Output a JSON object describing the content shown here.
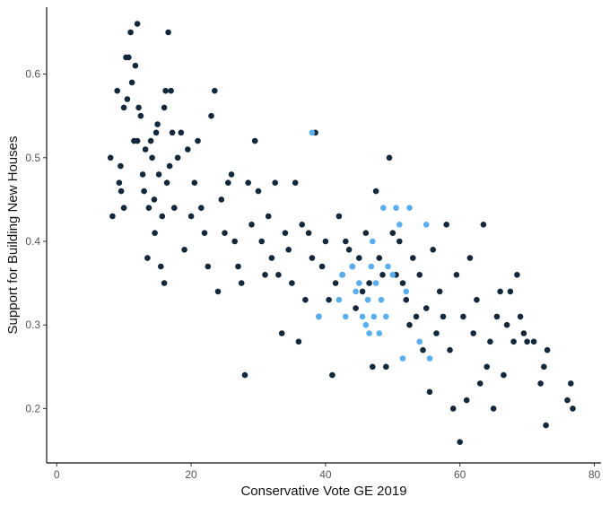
{
  "chart_data": {
    "type": "scatter",
    "title": "",
    "xlabel": "Conservative Vote GE 2019",
    "ylabel": "Support for Building New Houses",
    "xlim": [
      -1.5,
      81
    ],
    "ylim": [
      0.135,
      0.68
    ],
    "xticks": [
      0,
      20,
      40,
      60,
      80
    ],
    "yticks": [
      0.2,
      0.3,
      0.4,
      0.5,
      0.6
    ],
    "xtick_labels": [
      "0",
      "20",
      "40",
      "60",
      "80"
    ],
    "ytick_labels": [
      "0.2",
      "0.3",
      "0.4",
      "0.5",
      "0.6"
    ],
    "grid": false,
    "legend": "none",
    "colors": {
      "primary": "#14283c",
      "highlight": "#5aaef0",
      "axis": "#111111",
      "tick_text": "#555555"
    },
    "series": [
      {
        "color": "#14283c",
        "points": [
          [
            8,
            0.5
          ],
          [
            8.3,
            0.43
          ],
          [
            9,
            0.58
          ],
          [
            9.3,
            0.47
          ],
          [
            9.5,
            0.49
          ],
          [
            9.6,
            0.46
          ],
          [
            10,
            0.56
          ],
          [
            10,
            0.44
          ],
          [
            10.3,
            0.62
          ],
          [
            10.5,
            0.57
          ],
          [
            10.7,
            0.62
          ],
          [
            11,
            0.65
          ],
          [
            11.2,
            0.59
          ],
          [
            11.5,
            0.52
          ],
          [
            11.7,
            0.61
          ],
          [
            12,
            0.66
          ],
          [
            12,
            0.52
          ],
          [
            12.2,
            0.56
          ],
          [
            12.5,
            0.55
          ],
          [
            12.8,
            0.48
          ],
          [
            13,
            0.46
          ],
          [
            13.2,
            0.51
          ],
          [
            13.5,
            0.38
          ],
          [
            13.7,
            0.44
          ],
          [
            14,
            0.52
          ],
          [
            14.2,
            0.5
          ],
          [
            14.5,
            0.45
          ],
          [
            14.6,
            0.41
          ],
          [
            14.8,
            0.53
          ],
          [
            15,
            0.54
          ],
          [
            15.2,
            0.48
          ],
          [
            15.5,
            0.37
          ],
          [
            15.7,
            0.43
          ],
          [
            16,
            0.56
          ],
          [
            16,
            0.35
          ],
          [
            16.2,
            0.58
          ],
          [
            16.4,
            0.47
          ],
          [
            16.6,
            0.65
          ],
          [
            16.8,
            0.49
          ],
          [
            17,
            0.58
          ],
          [
            17.2,
            0.53
          ],
          [
            17.5,
            0.44
          ],
          [
            18,
            0.5
          ],
          [
            18.5,
            0.53
          ],
          [
            19,
            0.39
          ],
          [
            19.5,
            0.51
          ],
          [
            20,
            0.43
          ],
          [
            20.5,
            0.47
          ],
          [
            21,
            0.52
          ],
          [
            21.5,
            0.44
          ],
          [
            22,
            0.41
          ],
          [
            22.5,
            0.37
          ],
          [
            23,
            0.55
          ],
          [
            23.5,
            0.58
          ],
          [
            24,
            0.34
          ],
          [
            24.5,
            0.45
          ],
          [
            25,
            0.41
          ],
          [
            25.5,
            0.47
          ],
          [
            26,
            0.48
          ],
          [
            26.5,
            0.4
          ],
          [
            27,
            0.37
          ],
          [
            27.5,
            0.35
          ],
          [
            28,
            0.24
          ],
          [
            28.5,
            0.47
          ],
          [
            29,
            0.42
          ],
          [
            29.5,
            0.52
          ],
          [
            30,
            0.46
          ],
          [
            30.5,
            0.4
          ],
          [
            31,
            0.36
          ],
          [
            31.5,
            0.43
          ],
          [
            32,
            0.38
          ],
          [
            32.5,
            0.47
          ],
          [
            33,
            0.36
          ],
          [
            33.5,
            0.29
          ],
          [
            34,
            0.41
          ],
          [
            34.5,
            0.39
          ],
          [
            35,
            0.35
          ],
          [
            35.5,
            0.47
          ],
          [
            36,
            0.28
          ],
          [
            36.5,
            0.42
          ],
          [
            37,
            0.33
          ],
          [
            37.5,
            0.41
          ],
          [
            38,
            0.38
          ],
          [
            38.5,
            0.53
          ],
          [
            39,
            0.31
          ],
          [
            39.5,
            0.37
          ],
          [
            40,
            0.4
          ],
          [
            40.5,
            0.33
          ],
          [
            41,
            0.24
          ],
          [
            41.5,
            0.35
          ],
          [
            42,
            0.43
          ],
          [
            42.5,
            0.36
          ],
          [
            43,
            0.4
          ],
          [
            43.5,
            0.39
          ],
          [
            44,
            0.37
          ],
          [
            44.5,
            0.32
          ],
          [
            45,
            0.38
          ],
          [
            45.5,
            0.34
          ],
          [
            46,
            0.41
          ],
          [
            46.5,
            0.35
          ],
          [
            47,
            0.25
          ],
          [
            47.5,
            0.46
          ],
          [
            48,
            0.38
          ],
          [
            48.5,
            0.36
          ],
          [
            49,
            0.25
          ],
          [
            49.5,
            0.5
          ],
          [
            50,
            0.41
          ],
          [
            50.5,
            0.36
          ],
          [
            51,
            0.4
          ],
          [
            51.5,
            0.35
          ],
          [
            52,
            0.33
          ],
          [
            52.5,
            0.3
          ],
          [
            53,
            0.38
          ],
          [
            53.5,
            0.31
          ],
          [
            54,
            0.36
          ],
          [
            54.5,
            0.27
          ],
          [
            55,
            0.32
          ],
          [
            55.5,
            0.22
          ],
          [
            56,
            0.39
          ],
          [
            56.5,
            0.29
          ],
          [
            57,
            0.34
          ],
          [
            57.5,
            0.31
          ],
          [
            58,
            0.42
          ],
          [
            58.5,
            0.27
          ],
          [
            59,
            0.2
          ],
          [
            59.5,
            0.36
          ],
          [
            60,
            0.16
          ],
          [
            60.5,
            0.31
          ],
          [
            61,
            0.21
          ],
          [
            61.5,
            0.38
          ],
          [
            62,
            0.29
          ],
          [
            62.5,
            0.33
          ],
          [
            63,
            0.23
          ],
          [
            63.5,
            0.42
          ],
          [
            64,
            0.25
          ],
          [
            64.5,
            0.28
          ],
          [
            65,
            0.2
          ],
          [
            65.5,
            0.31
          ],
          [
            66,
            0.34
          ],
          [
            66.5,
            0.24
          ],
          [
            67,
            0.3
          ],
          [
            67.5,
            0.34
          ],
          [
            68,
            0.28
          ],
          [
            68.5,
            0.36
          ],
          [
            69,
            0.31
          ],
          [
            69.5,
            0.29
          ],
          [
            70,
            0.28
          ],
          [
            71,
            0.28
          ],
          [
            72,
            0.23
          ],
          [
            72.5,
            0.25
          ],
          [
            72.8,
            0.18
          ],
          [
            73,
            0.27
          ],
          [
            76,
            0.21
          ],
          [
            76.5,
            0.23
          ],
          [
            76.8,
            0.2
          ]
        ]
      },
      {
        "color": "#5aaef0",
        "points": [
          [
            38,
            0.53
          ],
          [
            39,
            0.31
          ],
          [
            42,
            0.33
          ],
          [
            42.5,
            0.36
          ],
          [
            43,
            0.31
          ],
          [
            44,
            0.37
          ],
          [
            44.5,
            0.34
          ],
          [
            45,
            0.35
          ],
          [
            45.5,
            0.31
          ],
          [
            46,
            0.3
          ],
          [
            46.3,
            0.33
          ],
          [
            46.5,
            0.29
          ],
          [
            46.8,
            0.37
          ],
          [
            47,
            0.4
          ],
          [
            47.2,
            0.31
          ],
          [
            47.5,
            0.35
          ],
          [
            48,
            0.29
          ],
          [
            48.3,
            0.33
          ],
          [
            48.6,
            0.44
          ],
          [
            49,
            0.31
          ],
          [
            49.3,
            0.37
          ],
          [
            50,
            0.36
          ],
          [
            50.5,
            0.44
          ],
          [
            51,
            0.42
          ],
          [
            51.5,
            0.26
          ],
          [
            52,
            0.34
          ],
          [
            52.5,
            0.44
          ],
          [
            54,
            0.28
          ],
          [
            55,
            0.42
          ],
          [
            55.5,
            0.26
          ]
        ]
      }
    ]
  }
}
